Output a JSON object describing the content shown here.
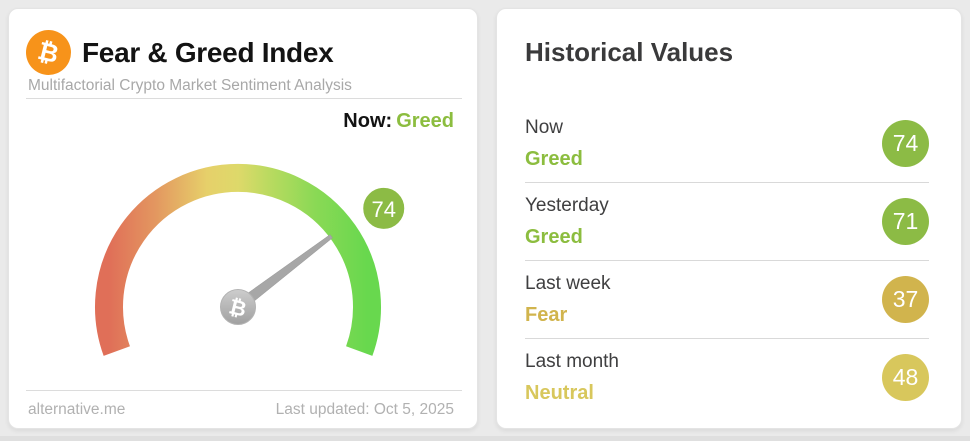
{
  "colors": {
    "background": "#eaeaea",
    "card": "#ffffff",
    "divider": "#dcdcdc",
    "bitcoin_orange": "#f7931a",
    "greed_green": "#8cbd3f",
    "badge_green": "#8cbb45",
    "fear_gold": "#d1b44d",
    "neutral_yellow": "#d8c75c",
    "needle_gray": "#a7a7a7"
  },
  "gauge_card": {
    "bitcoin_symbol": "₿",
    "title": "Fear & Greed Index",
    "subtitle": "Multifactorial Crypto Market Sentiment Analysis",
    "now_label": "Now:",
    "now_classification": "Greed",
    "gauge_value": "74",
    "footer_source": "alternative.me",
    "footer_updated": "Last updated: Oct 5, 2025"
  },
  "history_card": {
    "title": "Historical Values"
  },
  "chart_data": {
    "type": "gauge",
    "title": "Fear & Greed Index",
    "min": 0,
    "max": 100,
    "value": 74,
    "classification": "Greed",
    "arc_start_deg": 200,
    "arc_span_deg": 220,
    "arc_gradient": [
      "#e06f58",
      "#e39760",
      "#e6d06a",
      "#ded96a",
      "#bada60",
      "#8ad955",
      "#68d84e"
    ],
    "historical": [
      {
        "label": "Now",
        "classification": "Greed",
        "value": 74,
        "color": "#8cbb45",
        "text_color": "#8cbd3f"
      },
      {
        "label": "Yesterday",
        "classification": "Greed",
        "value": 71,
        "color": "#8cbb45",
        "text_color": "#8cbd3f"
      },
      {
        "label": "Last week",
        "classification": "Fear",
        "value": 37,
        "color": "#d1b44d",
        "text_color": "#d1b44d"
      },
      {
        "label": "Last month",
        "classification": "Neutral",
        "value": 48,
        "color": "#d8c75c",
        "text_color": "#d8c75c"
      }
    ]
  }
}
